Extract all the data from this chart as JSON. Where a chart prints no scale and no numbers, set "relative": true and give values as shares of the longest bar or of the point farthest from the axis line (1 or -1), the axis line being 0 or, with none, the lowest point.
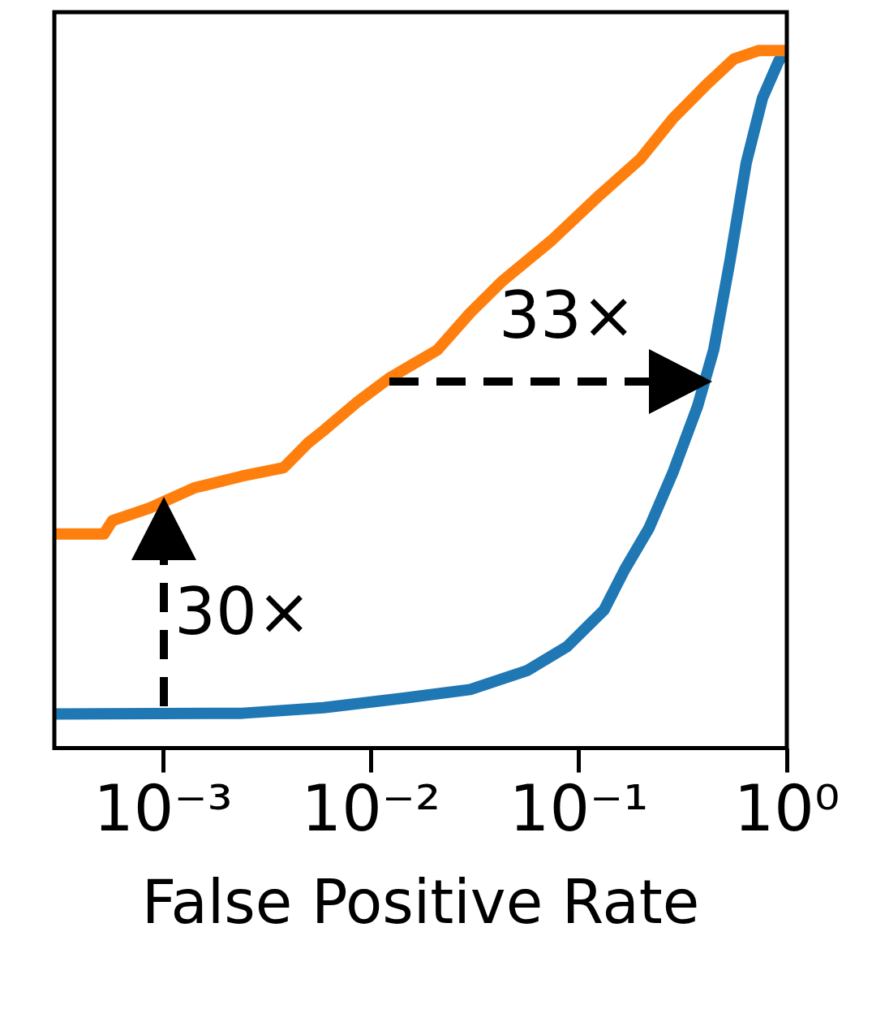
{
  "chart_data": {
    "type": "line",
    "xlabel": "False Positive Rate",
    "relative": true,
    "log": "x",
    "grid": false,
    "legend": false,
    "marker": "none",
    "line_style": "solid",
    "xlim": [
      0.0003,
      1
    ],
    "xticks": [
      {
        "value": 0.001,
        "label": "10⁻³"
      },
      {
        "value": 0.01,
        "label": "10⁻²"
      },
      {
        "value": 0.1,
        "label": "10⁻¹"
      },
      {
        "value": 1,
        "label": "10⁰"
      }
    ],
    "series": [
      {
        "color": "#ff7f0e",
        "x": [
          0.0003,
          0.00052,
          0.00057,
          0.00086,
          0.00141,
          0.0024,
          0.0038,
          0.00496,
          0.0059,
          0.0085,
          0.0122,
          0.0209,
          0.03,
          0.043,
          0.074,
          0.126,
          0.198,
          0.284,
          0.407,
          0.557,
          0.73,
          1
        ],
        "values": [
          0.307,
          0.307,
          0.326,
          0.344,
          0.373,
          0.39,
          0.402,
          0.437,
          0.455,
          0.495,
          0.53,
          0.571,
          0.624,
          0.67,
          0.728,
          0.793,
          0.845,
          0.903,
          0.95,
          0.988,
          1,
          1
        ]
      },
      {
        "color": "#1f77b4",
        "x": [
          0.0003,
          0.0024,
          0.0059,
          0.0146,
          0.03,
          0.0562,
          0.088,
          0.132,
          0.166,
          0.217,
          0.284,
          0.372,
          0.445,
          0.533,
          0.638,
          0.764,
          0.914,
          1
        ],
        "values": [
          0.049,
          0.05,
          0.058,
          0.072,
          0.084,
          0.111,
          0.146,
          0.198,
          0.256,
          0.315,
          0.396,
          0.49,
          0.571,
          0.699,
          0.839,
          0.932,
          0.985,
          1
        ]
      }
    ],
    "annotations": [
      "30×",
      "33×"
    ]
  }
}
